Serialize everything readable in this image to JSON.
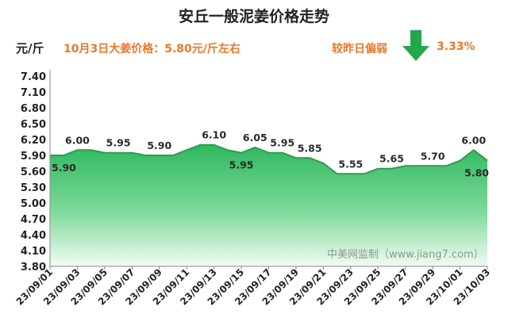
{
  "title": "安丘一般泥姜价格走势",
  "unit": "元/斤",
  "date_price": "10月3日大姜价格：5.80元/斤左右",
  "change_label": "较昨日偏弱",
  "change_value": "3.33%",
  "watermark": "中美网监制（www.jiang7.com）",
  "colors": {
    "accent_orange": "#E8782A",
    "arrow_green": "#22A84A",
    "area_fill": "#3DC06A",
    "line": "#2E9B4E"
  },
  "icons": {
    "trend": "down-arrow-icon"
  },
  "chart_data": {
    "type": "area",
    "title": "安丘一般泥姜价格走势",
    "ylabel": "元/斤",
    "ylim": [
      3.8,
      7.4
    ],
    "yticks": [
      "3.80",
      "4.10",
      "4.40",
      "4.70",
      "5.00",
      "5.30",
      "5.60",
      "5.90",
      "6.20",
      "6.50",
      "6.80",
      "7.10",
      "7.40"
    ],
    "x": [
      "23/09/01",
      "23/09/02",
      "23/09/03",
      "23/09/04",
      "23/09/05",
      "23/09/06",
      "23/09/07",
      "23/09/08",
      "23/09/09",
      "23/09/10",
      "23/09/11",
      "23/09/12",
      "23/09/13",
      "23/09/14",
      "23/09/15",
      "23/09/16",
      "23/09/17",
      "23/09/18",
      "23/09/19",
      "23/09/20",
      "23/09/21",
      "23/09/22",
      "23/09/23",
      "23/09/24",
      "23/09/25",
      "23/09/26",
      "23/09/27",
      "23/09/28",
      "23/09/29",
      "23/09/30",
      "23/10/01",
      "23/10/02",
      "23/10/03"
    ],
    "xticks": [
      "23/09/01",
      "23/09/03",
      "23/09/05",
      "23/09/07",
      "23/09/09",
      "23/09/11",
      "23/09/13",
      "23/09/15",
      "23/09/17",
      "23/09/19",
      "23/09/21",
      "23/09/23",
      "23/09/25",
      "23/09/27",
      "23/09/29",
      "23/10/01",
      "23/10/03"
    ],
    "values": [
      5.9,
      5.9,
      6.0,
      6.0,
      5.95,
      5.95,
      5.95,
      5.9,
      5.9,
      5.9,
      6.0,
      6.1,
      6.1,
      6.0,
      5.95,
      6.05,
      5.95,
      5.95,
      5.85,
      5.85,
      5.75,
      5.55,
      5.55,
      5.55,
      5.65,
      5.65,
      5.7,
      5.7,
      5.7,
      5.7,
      5.8,
      6.0,
      5.8
    ],
    "data_labels": [
      {
        "i": 0,
        "text": "5.90",
        "pos": "below"
      },
      {
        "i": 2,
        "text": "6.00",
        "pos": "above"
      },
      {
        "i": 5,
        "text": "5.95",
        "pos": "above"
      },
      {
        "i": 8,
        "text": "5.90",
        "pos": "above"
      },
      {
        "i": 12,
        "text": "6.10",
        "pos": "above"
      },
      {
        "i": 14,
        "text": "5.95",
        "pos": "below"
      },
      {
        "i": 15,
        "text": "6.05",
        "pos": "above"
      },
      {
        "i": 17,
        "text": "5.95",
        "pos": "above"
      },
      {
        "i": 19,
        "text": "5.85",
        "pos": "above"
      },
      {
        "i": 22,
        "text": "5.55",
        "pos": "above"
      },
      {
        "i": 25,
        "text": "5.65",
        "pos": "above"
      },
      {
        "i": 28,
        "text": "5.70",
        "pos": "above"
      },
      {
        "i": 31,
        "text": "6.00",
        "pos": "above"
      },
      {
        "i": 32,
        "text": "5.80",
        "pos": "below"
      }
    ],
    "grid": false,
    "legend": "none"
  }
}
